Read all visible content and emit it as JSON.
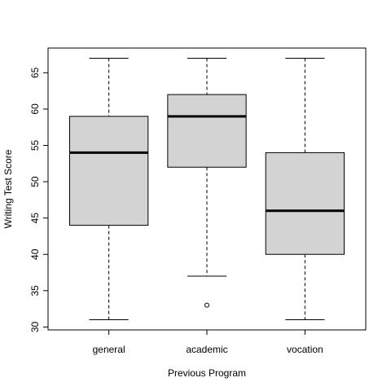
{
  "chart_data": {
    "type": "boxplot",
    "title": "",
    "xlabel": "Previous Program",
    "ylabel": "Writing Test Score",
    "ylim": [
      29.6,
      68.4
    ],
    "yticks": [
      30,
      35,
      40,
      45,
      50,
      55,
      60,
      65
    ],
    "grid": false,
    "categories": [
      "general",
      "academic",
      "vocation"
    ],
    "boxes": [
      {
        "whisker_low": 31,
        "q1": 44,
        "median": 54,
        "q3": 59,
        "whisker_high": 67,
        "outliers": []
      },
      {
        "whisker_low": 37,
        "q1": 52,
        "median": 59,
        "q3": 62,
        "whisker_high": 67,
        "outliers": [
          33
        ]
      },
      {
        "whisker_low": 31,
        "q1": 40,
        "median": 46,
        "q3": 54,
        "whisker_high": 67,
        "outliers": []
      }
    ],
    "box_fill": "#d3d3d3",
    "line_color": "#000000"
  }
}
